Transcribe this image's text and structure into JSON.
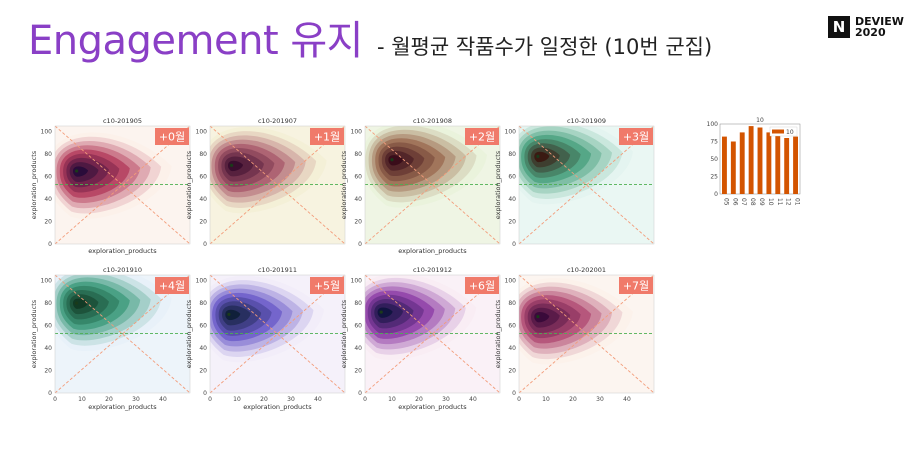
{
  "header": {
    "title": "Engagement 유지",
    "subtitle": "- 월평균 작품수가 일정한 (10번 군집)",
    "logo_letter": "N",
    "logo_line1": "DEVIEW",
    "logo_line2": "2020"
  },
  "colors": {
    "title": "#8a3fc6",
    "badge": "#f07a6a",
    "ref_line_h": "#4caf50",
    "ref_line_diag": "#f39c7a",
    "mini_bar": "#d35400"
  },
  "chart_data": [
    {
      "type": "heatmap",
      "panels": [
        {
          "title": "c10-201905",
          "badge": "+0월",
          "palette": [
            "#fbeee6",
            "#b23a5b",
            "#2a0c3a"
          ],
          "peak": [
            8,
            65
          ],
          "show_x_ticks": false,
          "show_xlabel": true
        },
        {
          "title": "c10-201907",
          "badge": "+1월",
          "palette": [
            "#f3ecd0",
            "#a8596b",
            "#3a0d2e"
          ],
          "peak": [
            8,
            70
          ],
          "show_x_ticks": false,
          "show_xlabel": false
        },
        {
          "title": "c10-201908",
          "badge": "+2월",
          "palette": [
            "#e6f0d6",
            "#9b6b50",
            "#3a0d1a"
          ],
          "peak": [
            10,
            75
          ],
          "show_x_ticks": false,
          "show_xlabel": true
        },
        {
          "title": "c10-201909",
          "badge": "+3월",
          "palette": [
            "#dff3ec",
            "#4aa07e",
            "#3a1a12"
          ],
          "peak": [
            7,
            78
          ],
          "show_x_ticks": false,
          "show_xlabel": false
        },
        {
          "title": "c10-201910",
          "badge": "+4월",
          "palette": [
            "#e3eef8",
            "#3d9a7a",
            "#123a25"
          ],
          "peak": [
            8,
            80
          ],
          "show_x_ticks": true,
          "show_xlabel": true
        },
        {
          "title": "c10-201911",
          "badge": "+5월",
          "palette": [
            "#efeaf8",
            "#6a5ac8",
            "#10203a"
          ],
          "peak": [
            7,
            70
          ],
          "show_x_ticks": true,
          "show_xlabel": true
        },
        {
          "title": "c10-201912",
          "badge": "+6월",
          "palette": [
            "#f8eaf2",
            "#8d3da6",
            "#111440"
          ],
          "peak": [
            6,
            72
          ],
          "show_x_ticks": true,
          "show_xlabel": true
        },
        {
          "title": "c10-202001",
          "badge": "+7월",
          "palette": [
            "#fbefe8",
            "#b04a72",
            "#3a0a3a"
          ],
          "peak": [
            7,
            68
          ],
          "show_x_ticks": true,
          "show_xlabel": false
        }
      ],
      "xlabel": "exploration_products",
      "ylabel": "exploration_products",
      "xlim": [
        0,
        50
      ],
      "ylim": [
        0,
        105
      ],
      "x_ticks": [
        0,
        10,
        20,
        30,
        40
      ],
      "y_ticks": [
        0,
        20,
        40,
        60,
        80,
        100
      ],
      "hline_y": 53
    },
    {
      "type": "bar",
      "title": "10",
      "legend": "10",
      "legend_position": "top-right",
      "categories": [
        "05",
        "06",
        "07",
        "08",
        "09",
        "10",
        "11",
        "12",
        "01"
      ],
      "values": [
        82,
        75,
        88,
        97,
        95,
        88,
        86,
        80,
        82
      ],
      "ylim": [
        0,
        100
      ],
      "y_ticks": [
        0,
        25,
        50,
        75,
        100
      ]
    }
  ]
}
